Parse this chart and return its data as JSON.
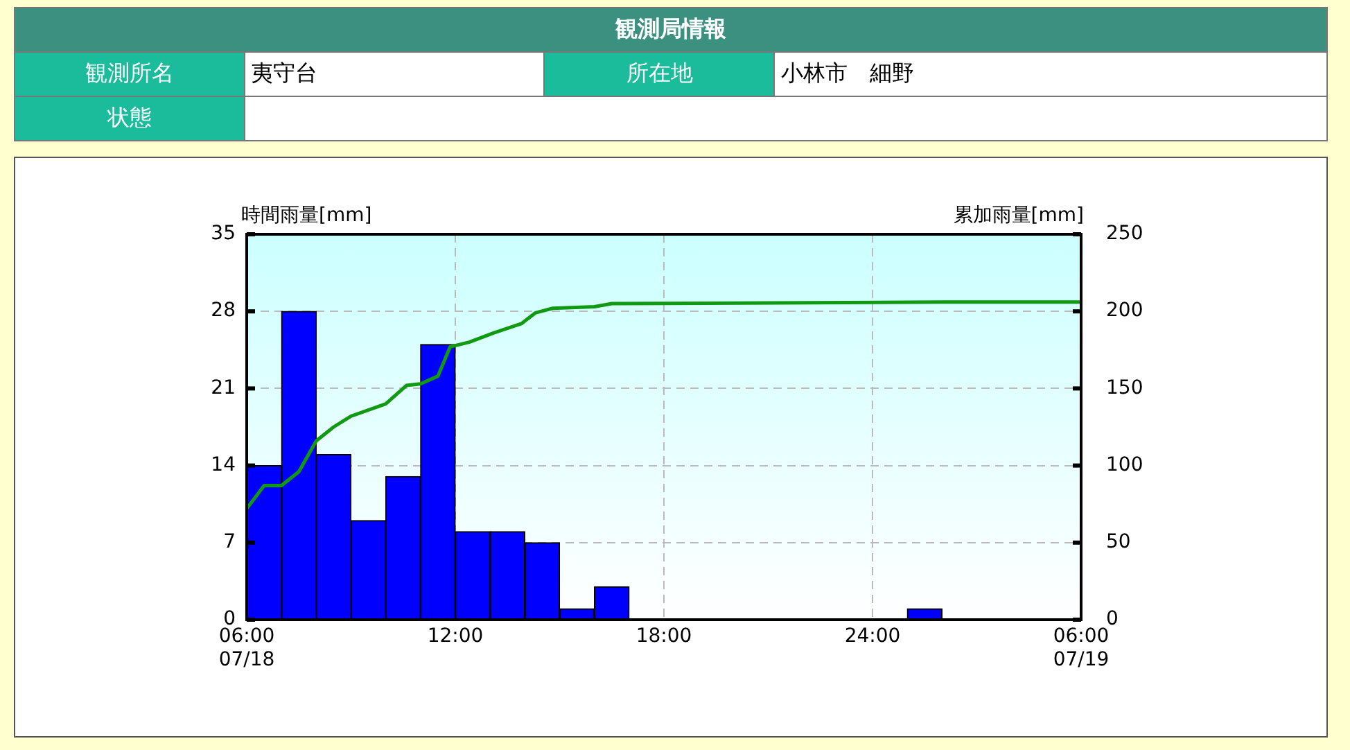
{
  "chart_data": {
    "type": "histogram",
    "title": "観測局情報",
    "annotations": [
      "観測所名",
      "夷守台",
      "所在地",
      "小林市　細野",
      "状態"
    ],
    "ylabel": "時間雨量[mm]",
    "y2label": "累加雨量[mm]",
    "bins": [
      6,
      7,
      8,
      9,
      10,
      11,
      12,
      13,
      14,
      15,
      16,
      17,
      18,
      19,
      20,
      21,
      22,
      23,
      24,
      25,
      26,
      27,
      28,
      29,
      30
    ],
    "values": [
      14,
      28,
      15,
      9,
      13,
      25,
      8,
      8,
      7,
      1,
      3,
      0,
      0,
      0,
      0,
      0,
      0,
      0,
      0,
      1,
      0,
      0,
      0,
      0
    ],
    "color": "#0000ff",
    "series": [
      {
        "type": "line",
        "axis": "y2",
        "color": "#119911",
        "x": [
          6,
          6.5,
          7,
          7.5,
          8,
          8.5,
          9,
          10,
          10.6,
          11,
          11.5,
          11.85,
          12.4,
          13.1,
          13.9,
          14.3,
          14.8,
          16,
          16.5,
          26,
          30
        ],
        "values": [
          72,
          87,
          87,
          96,
          116,
          125,
          132,
          140,
          152,
          153,
          158,
          177,
          180,
          186,
          192,
          199,
          202,
          203,
          205,
          206,
          206
        ]
      }
    ],
    "xlim": [
      6,
      30
    ],
    "xticks": [
      {
        "value": 6,
        "label": "06:00\n07/18"
      },
      {
        "value": 12,
        "label": "12:00"
      },
      {
        "value": 18,
        "label": "18:00"
      },
      {
        "value": 24,
        "label": "24:00"
      },
      {
        "value": 30,
        "label": "06:00\n07/19"
      }
    ],
    "ylim": [
      0,
      35
    ],
    "yticks": [
      0,
      7,
      14,
      21,
      28,
      35
    ],
    "y2lim": [
      0,
      250
    ],
    "y2ticks": [
      0,
      50,
      100,
      150,
      200,
      250
    ],
    "grid": true,
    "legend": false,
    "marker": "none",
    "line_style": "solid"
  }
}
